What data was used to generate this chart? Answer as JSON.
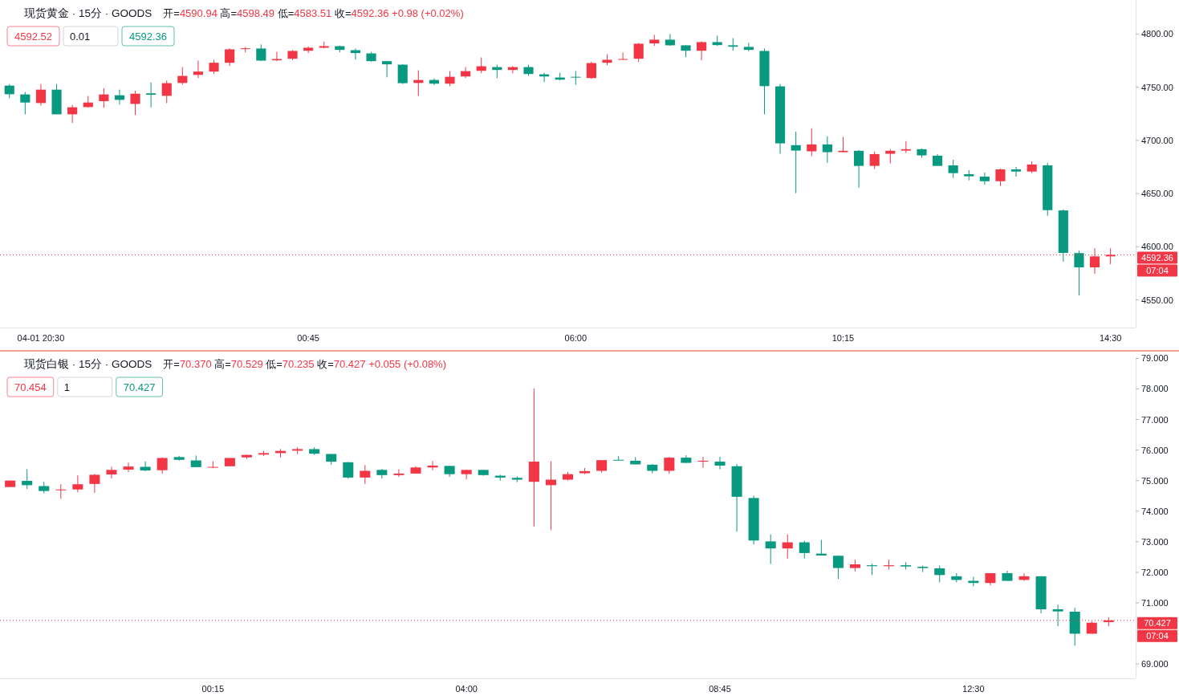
{
  "chart_data": [
    {
      "type": "candlestick",
      "title": "现货黄金 · 15分 · GOODS",
      "subtitle": "开=4590.94 高=4598.49 低=4583.51 收=4592.36 +0.98 (+0.02%)",
      "categories": [
        null,
        null,
        "04-01 20:30",
        null,
        null,
        null,
        null,
        null,
        null,
        null,
        null,
        null,
        null,
        null,
        null,
        null,
        null,
        null,
        null,
        "00:45",
        null,
        null,
        null,
        null,
        null,
        null,
        null,
        null,
        null,
        null,
        null,
        null,
        null,
        null,
        null,
        null,
        "06:00",
        null,
        null,
        null,
        null,
        null,
        null,
        null,
        null,
        null,
        null,
        null,
        null,
        null,
        null,
        null,
        null,
        "10:15",
        null,
        null,
        null,
        null,
        null,
        null,
        null,
        null,
        null,
        null,
        null,
        null,
        null,
        null,
        null,
        null,
        "14:30"
      ],
      "ohlc": [
        [
          4751.5,
          4753.0,
          4739.6,
          4743.4
        ],
        [
          4743.2,
          4745.5,
          4724.5,
          4735.6
        ],
        [
          4735.1,
          4753.0,
          4732.8,
          4747.7
        ],
        [
          4747.7,
          4753.0,
          4724.5,
          4724.5
        ],
        [
          4724.5,
          4733.3,
          4716.4,
          4731.1
        ],
        [
          4731.3,
          4741.7,
          4730.8,
          4735.6
        ],
        [
          4736.9,
          4749.2,
          4730.6,
          4743.2
        ],
        [
          4742.4,
          4747.7,
          4733.6,
          4738.1
        ],
        [
          4734.3,
          4746.7,
          4723.8,
          4743.9
        ],
        [
          4744.2,
          4754.5,
          4731.1,
          4742.9
        ],
        [
          4741.9,
          4756.3,
          4734.9,
          4753.8
        ],
        [
          4754.0,
          4768.9,
          4752.5,
          4760.6
        ],
        [
          4761.6,
          4775.0,
          4758.6,
          4764.7
        ],
        [
          4764.7,
          4775.8,
          4762.6,
          4773.0
        ],
        [
          4773.0,
          4786.6,
          4770.0,
          4785.6
        ],
        [
          4786.1,
          4787.9,
          4782.8,
          4786.6
        ],
        [
          4786.4,
          4790.2,
          4774.7,
          4775.0
        ],
        [
          4775.3,
          4783.3,
          4774.5,
          4776.5
        ],
        [
          4776.8,
          4784.9,
          4775.5,
          4784.1
        ],
        [
          4784.3,
          4788.4,
          4782.1,
          4787.1
        ],
        [
          4787.1,
          4792.9,
          4786.6,
          4788.6
        ],
        [
          4788.6,
          4789.1,
          4782.8,
          4785.1
        ],
        [
          4784.8,
          4786.4,
          4776.0,
          4782.1
        ],
        [
          4781.8,
          4783.1,
          4774.0,
          4774.5
        ],
        [
          4774.5,
          4774.7,
          4759.3,
          4771.5
        ],
        [
          4771.2,
          4771.7,
          4753.0,
          4753.8
        ],
        [
          4754.0,
          4765.9,
          4741.9,
          4756.8
        ],
        [
          4756.8,
          4758.3,
          4752.0,
          4753.3
        ],
        [
          4753.3,
          4765.1,
          4751.0,
          4759.8
        ],
        [
          4760.1,
          4768.9,
          4758.6,
          4765.1
        ],
        [
          4765.4,
          4778.0,
          4763.1,
          4769.7
        ],
        [
          4768.9,
          4771.2,
          4758.6,
          4766.2
        ],
        [
          4766.2,
          4770.0,
          4763.1,
          4768.9
        ],
        [
          4768.9,
          4771.2,
          4760.6,
          4762.4
        ],
        [
          4762.1,
          4763.6,
          4754.8,
          4760.1
        ],
        [
          4759.1,
          4763.6,
          4756.3,
          4757.1
        ],
        [
          4759.8,
          4765.1,
          4752.3,
          4759.1
        ],
        [
          4758.6,
          4774.0,
          4757.8,
          4772.7
        ],
        [
          4773.0,
          4781.1,
          4770.7,
          4775.8
        ],
        [
          4775.8,
          4782.6,
          4775.5,
          4776.5
        ],
        [
          4776.8,
          4791.7,
          4773.7,
          4790.9
        ],
        [
          4791.2,
          4799.2,
          4788.9,
          4794.7
        ],
        [
          4794.7,
          4800.0,
          4788.9,
          4789.4
        ],
        [
          4789.4,
          4789.4,
          4778.3,
          4784.3
        ],
        [
          4784.3,
          4793.2,
          4775.3,
          4792.4
        ],
        [
          4792.4,
          4798.5,
          4788.9,
          4789.6
        ],
        [
          4789.4,
          4796.2,
          4784.3,
          4788.1
        ],
        [
          4787.9,
          4791.7,
          4783.6,
          4785.1
        ],
        [
          4784.1,
          4786.4,
          4724.5,
          4751.0
        ],
        [
          4750.8,
          4753.0,
          4687.4,
          4697.2
        ],
        [
          4695.5,
          4708.3,
          4650.3,
          4690.4
        ],
        [
          4689.7,
          4711.4,
          4685.1,
          4696.2
        ],
        [
          4696.2,
          4703.8,
          4679.0,
          4688.9
        ],
        [
          4688.9,
          4703.0,
          4688.9,
          4690.2
        ],
        [
          4690.2,
          4690.9,
          4655.6,
          4676.0
        ],
        [
          4676.0,
          4689.4,
          4673.0,
          4687.1
        ],
        [
          4687.4,
          4691.7,
          4678.3,
          4690.2
        ],
        [
          4690.4,
          4699.3,
          4688.1,
          4691.7
        ],
        [
          4691.7,
          4692.4,
          4683.6,
          4685.9
        ],
        [
          4685.6,
          4687.1,
          4676.0,
          4676.0
        ],
        [
          4676.5,
          4681.8,
          4664.7,
          4669.2
        ],
        [
          4668.2,
          4672.0,
          4662.4,
          4666.2
        ],
        [
          4665.9,
          4669.7,
          4658.3,
          4661.6
        ],
        [
          4661.6,
          4673.5,
          4657.1,
          4672.7
        ],
        [
          4672.7,
          4675.0,
          4665.9,
          4670.7
        ],
        [
          4670.7,
          4680.3,
          4669.2,
          4677.3
        ],
        [
          4676.5,
          4678.8,
          4629.0,
          4634.4
        ],
        [
          4634.1,
          4635.1,
          4585.9,
          4594.2
        ],
        [
          4594.0,
          4596.2,
          4554.1,
          4580.6
        ],
        [
          4580.6,
          4598.5,
          4574.5,
          4590.9
        ],
        [
          4590.94,
          4598.49,
          4583.51,
          4592.36
        ]
      ],
      "colors": [
        "#089981",
        "#089981",
        "#f23645",
        "#089981",
        "#f23645",
        "#f23645",
        "#f23645",
        "#089981",
        "#f23645",
        "#089981",
        "#f23645",
        "#f23645",
        "#f23645",
        "#f23645",
        "#f23645",
        "#f23645",
        "#089981",
        "#f23645",
        "#f23645",
        "#f23645",
        "#f23645",
        "#089981",
        "#089981",
        "#089981",
        "#089981",
        "#089981",
        "#f23645",
        "#089981",
        "#f23645",
        "#f23645",
        "#f23645",
        "#089981",
        "#f23645",
        "#089981",
        "#089981",
        "#089981",
        "#089981",
        "#f23645",
        "#f23645",
        "#f23645",
        "#f23645",
        "#f23645",
        "#089981",
        "#089981",
        "#f23645",
        "#089981",
        "#089981",
        "#089981",
        "#089981",
        "#089981",
        "#089981",
        "#f23645",
        "#089981",
        "#f23645",
        "#089981",
        "#f23645",
        "#f23645",
        "#f23645",
        "#089981",
        "#089981",
        "#089981",
        "#089981",
        "#089981",
        "#f23645",
        "#089981",
        "#f23645",
        "#089981",
        "#089981",
        "#089981",
        "#f23645",
        "#f23645"
      ],
      "ylim": [
        4524,
        4832
      ],
      "yticks": [
        {
          "value": 4550,
          "label": "4550.00"
        },
        {
          "value": 4600,
          "label": "4600.00"
        },
        {
          "value": 4650,
          "label": "4650.00"
        },
        {
          "value": 4700,
          "label": "4700.00"
        },
        {
          "value": 4750,
          "label": "4750.00"
        },
        {
          "value": 4800,
          "label": "4800.00"
        }
      ],
      "ref_lines": [
        {
          "axis": "y",
          "value": 4592.36,
          "label": "4592.36",
          "color": "#f23645",
          "line_style": "dotted"
        }
      ],
      "annotations": [
        "4592.52",
        "0.01",
        "4592.36",
        "07:04"
      ]
    },
    {
      "type": "candlestick",
      "title": "现货白银 · 15分 · GOODS",
      "subtitle": "开=70.370 高=70.529 低=70.235 收=70.427 +0.055 (+0.08%)",
      "categories": [
        null,
        null,
        null,
        null,
        null,
        null,
        null,
        null,
        null,
        null,
        null,
        null,
        "00:15",
        null,
        null,
        null,
        null,
        null,
        null,
        null,
        null,
        null,
        null,
        null,
        null,
        null,
        null,
        "04:00",
        null,
        null,
        null,
        null,
        null,
        null,
        null,
        null,
        null,
        null,
        null,
        null,
        null,
        null,
        "08:45",
        null,
        null,
        null,
        null,
        null,
        null,
        null,
        null,
        null,
        null,
        null,
        null,
        null,
        null,
        "12:30",
        null,
        null,
        null,
        null,
        null,
        null,
        null,
        null
      ],
      "ohlc": [
        [
          74.79,
          75.0,
          74.79,
          75.0
        ],
        [
          74.99,
          75.37,
          74.73,
          74.85
        ],
        [
          74.82,
          74.96,
          74.58,
          74.66
        ],
        [
          74.69,
          74.88,
          74.4,
          74.71
        ],
        [
          74.71,
          75.17,
          74.62,
          74.88
        ],
        [
          74.89,
          75.22,
          74.6,
          75.19
        ],
        [
          75.2,
          75.45,
          75.07,
          75.35
        ],
        [
          75.36,
          75.59,
          75.28,
          75.46
        ],
        [
          75.45,
          75.63,
          75.31,
          75.33
        ],
        [
          75.34,
          75.76,
          75.23,
          75.74
        ],
        [
          75.77,
          75.81,
          75.65,
          75.68
        ],
        [
          75.66,
          75.82,
          75.44,
          75.44
        ],
        [
          75.43,
          75.63,
          75.41,
          75.45
        ],
        [
          75.47,
          75.74,
          75.47,
          75.74
        ],
        [
          75.76,
          75.85,
          75.71,
          75.84
        ],
        [
          75.85,
          75.97,
          75.81,
          75.9
        ],
        [
          75.9,
          76.03,
          75.76,
          75.97
        ],
        [
          75.98,
          76.09,
          75.87,
          76.03
        ],
        [
          76.03,
          76.09,
          75.84,
          75.88
        ],
        [
          75.87,
          75.87,
          75.52,
          75.62
        ],
        [
          75.6,
          75.61,
          75.06,
          75.1
        ],
        [
          75.1,
          75.51,
          74.89,
          75.32
        ],
        [
          75.35,
          75.38,
          75.07,
          75.18
        ],
        [
          75.18,
          75.37,
          75.12,
          75.23
        ],
        [
          75.23,
          75.47,
          75.22,
          75.43
        ],
        [
          75.43,
          75.64,
          75.34,
          75.49
        ],
        [
          75.48,
          75.48,
          75.12,
          75.21
        ],
        [
          75.21,
          75.35,
          75.04,
          75.35
        ],
        [
          75.35,
          75.35,
          75.16,
          75.18
        ],
        [
          75.16,
          75.19,
          75.0,
          75.1
        ],
        [
          75.09,
          75.14,
          74.95,
          75.03
        ],
        [
          74.96,
          78.01,
          73.5,
          75.62
        ],
        [
          74.85,
          75.63,
          73.38,
          75.03
        ],
        [
          75.03,
          75.28,
          75.0,
          75.21
        ],
        [
          75.24,
          75.41,
          75.21,
          75.31
        ],
        [
          75.32,
          75.67,
          75.26,
          75.67
        ],
        [
          75.68,
          75.8,
          75.66,
          75.66
        ],
        [
          75.65,
          75.77,
          75.53,
          75.53
        ],
        [
          75.52,
          75.54,
          75.24,
          75.32
        ],
        [
          75.32,
          75.78,
          75.22,
          75.75
        ],
        [
          75.75,
          75.83,
          75.58,
          75.58
        ],
        [
          75.62,
          75.78,
          75.42,
          75.65
        ],
        [
          75.62,
          75.78,
          75.37,
          75.49
        ],
        [
          75.47,
          75.54,
          73.33,
          74.47
        ],
        [
          74.43,
          74.51,
          72.91,
          73.04
        ],
        [
          73.01,
          73.24,
          72.27,
          72.78
        ],
        [
          72.78,
          73.24,
          72.45,
          72.98
        ],
        [
          72.98,
          73.03,
          72.45,
          72.63
        ],
        [
          72.61,
          73.06,
          72.55,
          72.55
        ],
        [
          72.54,
          72.54,
          71.78,
          72.14
        ],
        [
          72.14,
          72.41,
          72.03,
          72.26
        ],
        [
          72.23,
          72.28,
          71.91,
          72.2
        ],
        [
          72.2,
          72.41,
          72.09,
          72.23
        ],
        [
          72.23,
          72.33,
          72.09,
          72.19
        ],
        [
          72.18,
          72.22,
          72.01,
          72.14
        ],
        [
          72.13,
          72.22,
          71.67,
          71.91
        ],
        [
          71.87,
          71.97,
          71.67,
          71.75
        ],
        [
          71.72,
          71.85,
          71.54,
          71.65
        ],
        [
          71.65,
          71.97,
          71.57,
          71.97
        ],
        [
          71.97,
          72.05,
          71.72,
          71.72
        ],
        [
          71.75,
          71.97,
          71.72,
          71.87
        ],
        [
          71.87,
          71.87,
          70.66,
          70.79
        ],
        [
          70.79,
          70.94,
          70.24,
          70.72
        ],
        [
          70.71,
          70.84,
          69.6,
          69.99
        ],
        [
          69.99,
          70.4,
          69.99,
          70.35
        ],
        [
          70.37,
          70.529,
          70.235,
          70.427
        ]
      ],
      "colors": [
        "#f23645",
        "#089981",
        "#089981",
        "#f23645",
        "#f23645",
        "#f23645",
        "#f23645",
        "#f23645",
        "#089981",
        "#f23645",
        "#089981",
        "#089981",
        "#f23645",
        "#f23645",
        "#f23645",
        "#f23645",
        "#f23645",
        "#f23645",
        "#089981",
        "#089981",
        "#089981",
        "#f23645",
        "#089981",
        "#f23645",
        "#f23645",
        "#f23645",
        "#089981",
        "#f23645",
        "#089981",
        "#089981",
        "#089981",
        "#f23645",
        "#f23645",
        "#f23645",
        "#f23645",
        "#f23645",
        "#089981",
        "#089981",
        "#089981",
        "#f23645",
        "#089981",
        "#f23645",
        "#089981",
        "#089981",
        "#089981",
        "#089981",
        "#f23645",
        "#089981",
        "#089981",
        "#089981",
        "#f23645",
        "#089981",
        "#f23645",
        "#089981",
        "#089981",
        "#089981",
        "#089981",
        "#089981",
        "#f23645",
        "#089981",
        "#f23645",
        "#089981",
        "#089981",
        "#089981",
        "#f23645",
        "#f23645"
      ],
      "ylim": [
        68.53,
        79.01
      ],
      "yticks": [
        {
          "value": 69,
          "label": "69.000"
        },
        {
          "value": 71,
          "label": "71.000"
        },
        {
          "value": 72,
          "label": "72.000"
        },
        {
          "value": 73,
          "label": "73.000"
        },
        {
          "value": 74,
          "label": "74.000"
        },
        {
          "value": 75,
          "label": "75.000"
        },
        {
          "value": 76,
          "label": "76.000"
        },
        {
          "value": 77,
          "label": "77.000"
        },
        {
          "value": 78,
          "label": "78.000"
        },
        {
          "value": 79,
          "label": "79.000"
        }
      ],
      "ref_lines": [
        {
          "axis": "y",
          "value": 70.427,
          "label": "70.427",
          "color": "#f23645",
          "line_style": "dotted"
        }
      ],
      "annotations": [
        "70.454",
        "1",
        "70.427",
        "07:04"
      ]
    }
  ]
}
